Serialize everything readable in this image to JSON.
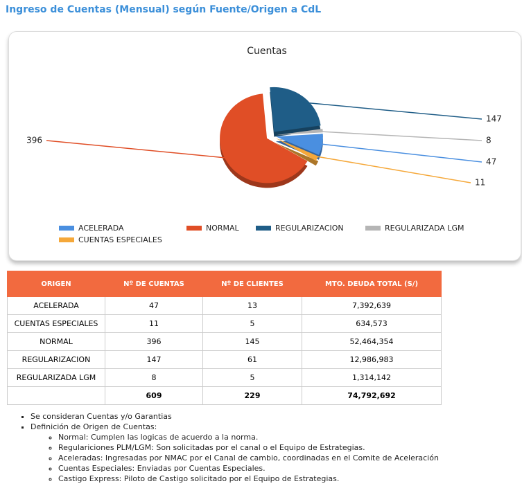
{
  "header": {
    "title": "Ingreso de Cuentas (Mensual) según Fuente/Origen a CdL"
  },
  "chart_data": {
    "type": "pie",
    "title": "Cuentas",
    "categories": [
      "ACELERADA",
      "NORMAL",
      "REGULARIZACION",
      "REGULARIZADA LGM",
      "CUENTAS ESPECIALES"
    ],
    "values": [
      47,
      396,
      147,
      8,
      11
    ],
    "colors": [
      "#4a8fe0",
      "#e04e26",
      "#1f5d87",
      "#b5b5b5",
      "#f5a83a"
    ]
  },
  "table": {
    "columns": [
      "ORIGEN",
      "Nº DE CUENTAS",
      "Nº DE CLIENTES",
      "MTO. DEUDA TOTAL (S/)"
    ],
    "rows": [
      [
        "ACELERADA",
        "47",
        "13",
        "7,392,639"
      ],
      [
        "CUENTAS ESPECIALES",
        "11",
        "5",
        "634,573"
      ],
      [
        "NORMAL",
        "396",
        "145",
        "52,464,354"
      ],
      [
        "REGULARIZACION",
        "147",
        "61",
        "12,986,983"
      ],
      [
        "REGULARIZADA LGM",
        "8",
        "5",
        "1,314,142"
      ]
    ],
    "totals": [
      "609",
      "229",
      "74,792,692"
    ]
  },
  "notes": {
    "items": [
      "Se consideran Cuentas y/o Garantias",
      "Definición de Origen de Cuentas:"
    ],
    "subitems": [
      "Normal: Cumplen las logicas de acuerdo a la norma.",
      "Regulariciones PLM/LGM: Son solicitadas por el canal o el Equipo de Estrategias.",
      "Aceleradas: Ingresadas por NMAC por el Canal de cambio, coordinadas en el Comite de Aceleración",
      "Cuentas Especiales: Enviadas por Cuentas Especiales.",
      "Castigo Express: Piloto de Castigo solicitado por el Equipo de Estrategias."
    ]
  }
}
